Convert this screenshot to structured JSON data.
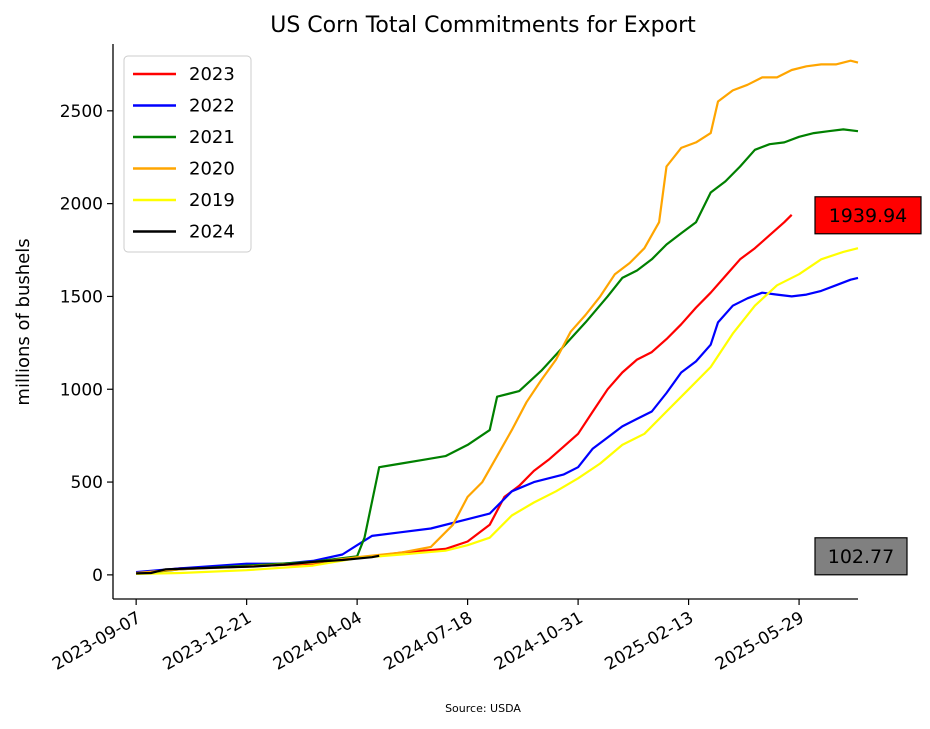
{
  "chart_data": {
    "type": "line",
    "title": "US Corn Total Commitments for Export",
    "xlabel": "",
    "ylabel": "millions of bushels",
    "source": "Source: USDA",
    "xlim": [
      "2023-08-16",
      "2025-07-24"
    ],
    "ylim": [
      -130,
      2860
    ],
    "x_ticks": [
      "2023-09-07",
      "2023-12-21",
      "2024-04-04",
      "2024-07-18",
      "2024-10-31",
      "2025-02-13",
      "2025-05-29"
    ],
    "y_ticks": [
      0,
      500,
      1000,
      1500,
      2000,
      2500
    ],
    "grid": false,
    "legend_position": "top-left",
    "series": [
      {
        "name": "2023",
        "color": "#ff0000",
        "points": [
          [
            "2023-09-07",
            10
          ],
          [
            "2023-10-19",
            35
          ],
          [
            "2023-12-21",
            45
          ],
          [
            "2024-02-22",
            60
          ],
          [
            "2024-04-04",
            90
          ],
          [
            "2024-05-16",
            120
          ],
          [
            "2024-06-27",
            140
          ],
          [
            "2024-07-18",
            180
          ],
          [
            "2024-08-08",
            270
          ],
          [
            "2024-08-22",
            420
          ],
          [
            "2024-09-05",
            480
          ],
          [
            "2024-09-19",
            560
          ],
          [
            "2024-10-03",
            620
          ],
          [
            "2024-10-17",
            690
          ],
          [
            "2024-10-31",
            760
          ],
          [
            "2024-11-14",
            880
          ],
          [
            "2024-11-28",
            1000
          ],
          [
            "2024-12-12",
            1090
          ],
          [
            "2024-12-26",
            1160
          ],
          [
            "2025-01-09",
            1200
          ],
          [
            "2025-01-23",
            1270
          ],
          [
            "2025-02-06",
            1350
          ],
          [
            "2025-02-20",
            1440
          ],
          [
            "2025-03-06",
            1520
          ],
          [
            "2025-03-20",
            1610
          ],
          [
            "2025-04-03",
            1700
          ],
          [
            "2025-04-17",
            1760
          ],
          [
            "2025-05-01",
            1830
          ],
          [
            "2025-05-15",
            1900
          ],
          [
            "2025-05-22",
            1940
          ]
        ]
      },
      {
        "name": "2022",
        "color": "#0000ff",
        "points": [
          [
            "2023-09-07",
            15
          ],
          [
            "2023-10-19",
            35
          ],
          [
            "2023-12-21",
            60
          ],
          [
            "2024-01-25",
            60
          ],
          [
            "2024-02-22",
            75
          ],
          [
            "2024-03-21",
            110
          ],
          [
            "2024-04-04",
            160
          ],
          [
            "2024-04-18",
            210
          ],
          [
            "2024-05-16",
            230
          ],
          [
            "2024-06-13",
            250
          ],
          [
            "2024-07-18",
            300
          ],
          [
            "2024-08-08",
            330
          ],
          [
            "2024-08-29",
            450
          ],
          [
            "2024-09-19",
            500
          ],
          [
            "2024-10-17",
            540
          ],
          [
            "2024-10-31",
            580
          ],
          [
            "2024-11-14",
            680
          ],
          [
            "2024-11-28",
            740
          ],
          [
            "2024-12-12",
            800
          ],
          [
            "2024-12-26",
            840
          ],
          [
            "2025-01-09",
            880
          ],
          [
            "2025-01-23",
            980
          ],
          [
            "2025-02-06",
            1090
          ],
          [
            "2025-02-20",
            1150
          ],
          [
            "2025-03-06",
            1240
          ],
          [
            "2025-03-13",
            1360
          ],
          [
            "2025-03-27",
            1450
          ],
          [
            "2025-04-10",
            1490
          ],
          [
            "2025-04-24",
            1520
          ],
          [
            "2025-05-08",
            1510
          ],
          [
            "2025-05-22",
            1500
          ],
          [
            "2025-06-05",
            1510
          ],
          [
            "2025-06-19",
            1530
          ],
          [
            "2025-07-03",
            1560
          ],
          [
            "2025-07-17",
            1590
          ],
          [
            "2025-07-24",
            1600
          ]
        ]
      },
      {
        "name": "2021",
        "color": "#008000",
        "points": [
          [
            "2023-09-07",
            5
          ],
          [
            "2023-10-19",
            30
          ],
          [
            "2023-12-21",
            50
          ],
          [
            "2024-02-22",
            70
          ],
          [
            "2024-04-04",
            100
          ],
          [
            "2024-04-11",
            200
          ],
          [
            "2024-04-25",
            580
          ],
          [
            "2024-05-16",
            600
          ],
          [
            "2024-06-06",
            620
          ],
          [
            "2024-06-27",
            640
          ],
          [
            "2024-07-18",
            700
          ],
          [
            "2024-08-08",
            780
          ],
          [
            "2024-08-15",
            960
          ],
          [
            "2024-09-05",
            990
          ],
          [
            "2024-09-26",
            1100
          ],
          [
            "2024-10-17",
            1230
          ],
          [
            "2024-11-07",
            1360
          ],
          [
            "2024-11-28",
            1500
          ],
          [
            "2024-12-12",
            1600
          ],
          [
            "2024-12-26",
            1640
          ],
          [
            "2025-01-09",
            1700
          ],
          [
            "2025-01-23",
            1780
          ],
          [
            "2025-02-06",
            1840
          ],
          [
            "2025-02-20",
            1900
          ],
          [
            "2025-03-06",
            2060
          ],
          [
            "2025-03-20",
            2120
          ],
          [
            "2025-04-03",
            2200
          ],
          [
            "2025-04-17",
            2290
          ],
          [
            "2025-05-01",
            2320
          ],
          [
            "2025-05-15",
            2330
          ],
          [
            "2025-05-29",
            2360
          ],
          [
            "2025-06-12",
            2380
          ],
          [
            "2025-06-26",
            2390
          ],
          [
            "2025-07-10",
            2400
          ],
          [
            "2025-07-24",
            2390
          ]
        ]
      },
      {
        "name": "2020",
        "color": "#ffa500",
        "points": [
          [
            "2023-09-07",
            10
          ],
          [
            "2023-10-19",
            30
          ],
          [
            "2023-12-21",
            45
          ],
          [
            "2024-02-22",
            65
          ],
          [
            "2024-04-04",
            95
          ],
          [
            "2024-05-16",
            120
          ],
          [
            "2024-06-13",
            150
          ],
          [
            "2024-07-04",
            270
          ],
          [
            "2024-07-18",
            420
          ],
          [
            "2024-08-01",
            500
          ],
          [
            "2024-08-15",
            640
          ],
          [
            "2024-08-29",
            780
          ],
          [
            "2024-09-12",
            930
          ],
          [
            "2024-09-26",
            1050
          ],
          [
            "2024-10-10",
            1160
          ],
          [
            "2024-10-24",
            1310
          ],
          [
            "2024-11-07",
            1400
          ],
          [
            "2024-11-21",
            1500
          ],
          [
            "2024-12-05",
            1620
          ],
          [
            "2024-12-19",
            1680
          ],
          [
            "2025-01-02",
            1760
          ],
          [
            "2025-01-16",
            1900
          ],
          [
            "2025-01-23",
            2200
          ],
          [
            "2025-02-06",
            2300
          ],
          [
            "2025-02-20",
            2330
          ],
          [
            "2025-03-06",
            2380
          ],
          [
            "2025-03-13",
            2550
          ],
          [
            "2025-03-27",
            2610
          ],
          [
            "2025-04-10",
            2640
          ],
          [
            "2025-04-24",
            2680
          ],
          [
            "2025-05-08",
            2680
          ],
          [
            "2025-05-22",
            2720
          ],
          [
            "2025-06-05",
            2740
          ],
          [
            "2025-06-19",
            2750
          ],
          [
            "2025-07-03",
            2750
          ],
          [
            "2025-07-17",
            2770
          ],
          [
            "2025-07-24",
            2760
          ]
        ]
      },
      {
        "name": "2019",
        "color": "#ffff00",
        "points": [
          [
            "2023-09-07",
            5
          ],
          [
            "2023-10-19",
            10
          ],
          [
            "2023-12-21",
            25
          ],
          [
            "2024-02-22",
            50
          ],
          [
            "2024-04-04",
            90
          ],
          [
            "2024-05-16",
            110
          ],
          [
            "2024-06-27",
            130
          ],
          [
            "2024-07-18",
            160
          ],
          [
            "2024-08-08",
            200
          ],
          [
            "2024-08-29",
            320
          ],
          [
            "2024-09-19",
            390
          ],
          [
            "2024-10-10",
            450
          ],
          [
            "2024-10-31",
            520
          ],
          [
            "2024-11-21",
            600
          ],
          [
            "2024-12-12",
            700
          ],
          [
            "2025-01-02",
            760
          ],
          [
            "2025-01-23",
            880
          ],
          [
            "2025-02-13",
            1000
          ],
          [
            "2025-03-06",
            1120
          ],
          [
            "2025-03-27",
            1300
          ],
          [
            "2025-04-17",
            1450
          ],
          [
            "2025-05-08",
            1560
          ],
          [
            "2025-05-29",
            1620
          ],
          [
            "2025-06-19",
            1700
          ],
          [
            "2025-07-10",
            1740
          ],
          [
            "2025-07-24",
            1760
          ]
        ]
      },
      {
        "name": "2024",
        "color": "#000000",
        "points": [
          [
            "2023-09-07",
            8
          ],
          [
            "2023-09-21",
            10
          ],
          [
            "2023-10-05",
            30
          ],
          [
            "2023-11-02",
            35
          ],
          [
            "2023-11-30",
            40
          ],
          [
            "2023-12-28",
            45
          ],
          [
            "2024-01-25",
            55
          ],
          [
            "2024-02-22",
            70
          ],
          [
            "2024-03-21",
            80
          ],
          [
            "2024-04-18",
            95
          ],
          [
            "2024-04-25",
            102.77
          ]
        ]
      }
    ],
    "value_boxes": [
      {
        "label": "1939.94",
        "value": 1939.94,
        "color": "#ff0000"
      },
      {
        "label": "102.77",
        "value": 102.77,
        "color": "#808080"
      }
    ]
  }
}
